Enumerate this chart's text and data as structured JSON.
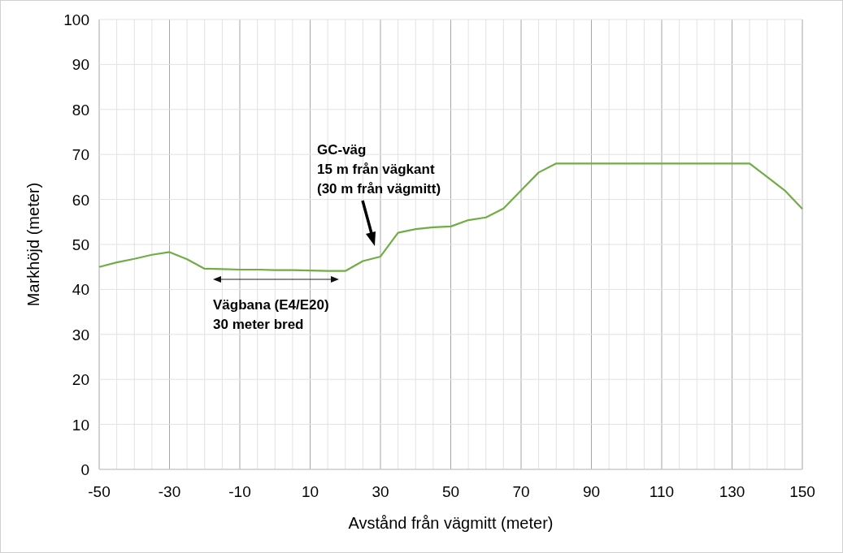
{
  "chart_data": {
    "type": "line",
    "xlabel": "Avstånd från vägmitt (meter)",
    "ylabel": "Markhöjd (meter)",
    "x": [
      -50,
      -45,
      -40,
      -35,
      -30,
      -25,
      -20,
      -15,
      -10,
      -5,
      0,
      5,
      10,
      15,
      20,
      25,
      30,
      35,
      40,
      45,
      50,
      55,
      60,
      65,
      70,
      75,
      80,
      85,
      90,
      95,
      100,
      105,
      110,
      115,
      120,
      125,
      130,
      135,
      140,
      145,
      150
    ],
    "series": [
      {
        "color": "#70ad47",
        "values": [
          45,
          46,
          46.8,
          47.7,
          48.3,
          46.7,
          44.6,
          44.5,
          44.4,
          44.4,
          44.3,
          44.3,
          44.2,
          44.1,
          44.1,
          46.3,
          47.3,
          52.6,
          53.4,
          53.8,
          54,
          55.4,
          56,
          58,
          62,
          66,
          68,
          68,
          68,
          68,
          68,
          68,
          68,
          68,
          68,
          68,
          68,
          68,
          65,
          62,
          57.9
        ]
      }
    ],
    "xlim": [
      -50,
      150
    ],
    "xticks": [
      -50,
      {
        "value": -45,
        "label": null
      },
      {
        "value": -40,
        "label": null
      },
      {
        "value": -35,
        "label": null
      },
      -30,
      {
        "value": -25,
        "label": null
      },
      {
        "value": -20,
        "label": null
      },
      {
        "value": -15,
        "label": null
      },
      -10,
      {
        "value": -5,
        "label": null
      },
      {
        "value": 0,
        "label": null
      },
      {
        "value": 5,
        "label": null
      },
      10,
      {
        "value": 15,
        "label": null
      },
      {
        "value": 20,
        "label": null
      },
      {
        "value": 25,
        "label": null
      },
      30,
      {
        "value": 35,
        "label": null
      },
      {
        "value": 40,
        "label": null
      },
      {
        "value": 45,
        "label": null
      },
      50,
      {
        "value": 55,
        "label": null
      },
      {
        "value": 60,
        "label": null
      },
      {
        "value": 65,
        "label": null
      },
      70,
      {
        "value": 75,
        "label": null
      },
      {
        "value": 80,
        "label": null
      },
      {
        "value": 85,
        "label": null
      },
      90,
      {
        "value": 95,
        "label": null
      },
      {
        "value": 100,
        "label": null
      },
      {
        "value": 105,
        "label": null
      },
      110,
      {
        "value": 115,
        "label": null
      },
      {
        "value": 120,
        "label": null
      },
      {
        "value": 125,
        "label": null
      },
      130,
      {
        "value": 135,
        "label": null
      },
      {
        "value": 140,
        "label": null
      },
      {
        "value": 145,
        "label": null
      },
      150
    ],
    "ylim": [
      0,
      100
    ],
    "yticks": [
      0,
      10,
      20,
      30,
      40,
      50,
      60,
      70,
      80,
      90,
      100
    ],
    "grid": true,
    "marker": "none",
    "line_style": "solid",
    "annotations": [
      "Vägbana (E4/E20)\n30 meter bred",
      "GC-väg\n15 m från vägkant\n(30 m från vägmitt)"
    ]
  }
}
